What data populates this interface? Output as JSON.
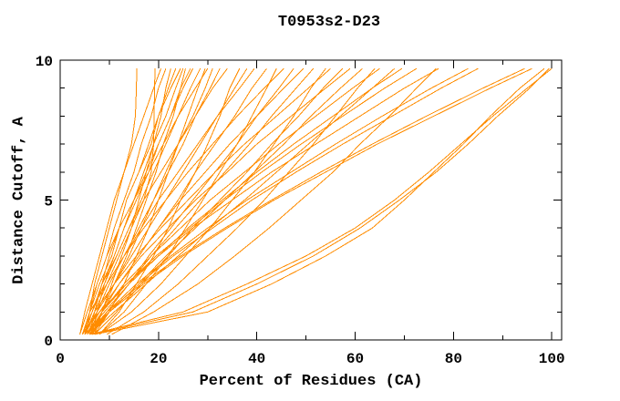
{
  "window": {
    "title": "T0953s2-D23"
  },
  "chart_data": {
    "type": "line",
    "title": "T0953s2-D23",
    "xlabel": "Percent of Residues (CA)",
    "ylabel": "Distance Cutoff, A",
    "xlim": [
      0,
      102
    ],
    "ylim": [
      0,
      10
    ],
    "x_major_ticks": [
      0,
      20,
      40,
      60,
      80,
      100
    ],
    "x_minor_ticks": [
      10,
      30,
      50,
      70,
      90
    ],
    "y_major_ticks": [
      0,
      5,
      10
    ],
    "y_minor_ticks": [
      1,
      2,
      3,
      4,
      6,
      7,
      8,
      9
    ],
    "grid": false,
    "legend": "none",
    "curve_color": "#FF8C00",
    "frame_color": "#000000",
    "background_color": "#FFFFFF",
    "y_levels": [
      0.2,
      1,
      2,
      3,
      4,
      5,
      6,
      7,
      8,
      9,
      9.7
    ],
    "curves": [
      [
        4,
        5,
        6.5,
        8,
        9.5,
        11,
        13,
        14.5,
        15.3,
        15.5,
        15.6
      ],
      [
        5,
        7,
        9.5,
        12,
        14.5,
        17,
        18.5,
        19,
        19.1,
        19.2,
        19.3
      ],
      [
        5,
        6,
        7,
        8.5,
        10,
        11.5,
        13,
        15,
        17,
        19,
        20.5
      ],
      [
        4.5,
        6,
        7.5,
        9.5,
        11,
        13,
        15,
        16.5,
        18.5,
        20,
        21.5
      ],
      [
        6.5,
        8.5,
        10.5,
        12.5,
        14.5,
        16,
        17.5,
        19,
        20.5,
        21.5,
        22.5
      ],
      [
        4.5,
        6,
        8,
        10.5,
        12,
        13.5,
        16,
        18.5,
        20,
        22,
        23.5
      ],
      [
        6,
        7,
        8.5,
        10,
        12,
        13.5,
        16,
        18,
        20,
        22.5,
        24.5
      ],
      [
        5,
        6.5,
        8.5,
        11,
        13,
        15,
        17,
        19,
        21.5,
        23.5,
        25
      ],
      [
        6,
        8.5,
        11,
        13.5,
        15.5,
        17.5,
        19.5,
        21,
        23,
        24.5,
        25.5
      ],
      [
        4.5,
        6.5,
        8.5,
        11,
        13,
        15.5,
        18,
        20,
        22.5,
        24.5,
        26.5
      ],
      [
        6.5,
        7.5,
        9,
        11,
        13,
        15,
        17.5,
        20,
        22.5,
        25,
        27
      ],
      [
        4.5,
        6.5,
        9,
        11.5,
        14,
        16.5,
        19,
        21.5,
        24,
        26.5,
        28.5
      ],
      [
        7,
        10,
        13,
        15.5,
        18,
        20,
        22,
        24,
        26,
        28,
        29.5
      ],
      [
        4,
        5.5,
        7.5,
        9.5,
        12,
        15,
        18,
        21,
        24,
        27.5,
        30
      ],
      [
        6.5,
        8.5,
        11,
        14,
        16.5,
        19,
        21.5,
        24,
        27,
        29.5,
        31
      ],
      [
        5,
        7.5,
        10,
        13,
        16,
        19,
        22,
        25,
        27.5,
        30.5,
        32.5
      ],
      [
        5,
        6.5,
        8.5,
        11.5,
        14,
        17,
        20.5,
        24,
        27.5,
        31,
        34
      ],
      [
        8,
        12,
        15.5,
        19,
        22,
        24.5,
        27.5,
        30,
        32.5,
        34.5,
        36.5
      ],
      [
        4.5,
        7.5,
        11,
        14.5,
        18,
        21.5,
        25,
        28.5,
        32,
        35.5,
        38
      ],
      [
        5.5,
        7.5,
        10,
        13,
        16.5,
        20,
        24,
        28,
        32,
        36.5,
        39.5
      ],
      [
        5.5,
        8.5,
        12,
        16,
        20,
        24,
        27.5,
        31.5,
        35.5,
        39,
        42
      ],
      [
        8,
        13,
        17.5,
        22,
        25.5,
        29,
        32.5,
        36,
        39,
        42,
        44
      ],
      [
        4.5,
        6,
        9.5,
        13,
        17,
        21.5,
        26,
        31,
        36,
        41.5,
        45.5
      ],
      [
        6,
        9.5,
        14,
        18,
        22.5,
        27,
        31.5,
        36,
        40,
        44.5,
        47.5
      ],
      [
        7,
        8.5,
        12,
        16,
        20,
        24.5,
        29.5,
        34.5,
        40,
        45.5,
        49.5
      ],
      [
        5,
        9,
        14,
        18.5,
        23.5,
        28.5,
        33.5,
        38.5,
        43,
        48,
        51.5
      ],
      [
        8,
        14.5,
        20.5,
        25.5,
        30.5,
        35,
        39.5,
        43.5,
        47.5,
        51,
        54
      ],
      [
        5,
        7,
        11,
        15.5,
        20.5,
        26,
        31.5,
        37.5,
        44,
        50.5,
        55
      ],
      [
        7,
        11.5,
        16.5,
        22,
        27,
        32.5,
        38,
        43,
        48.5,
        53.5,
        57.5
      ],
      [
        5.5,
        8,
        12,
        16.5,
        22,
        27.5,
        34,
        40,
        47,
        54,
        59
      ],
      [
        5,
        10,
        16,
        21.5,
        27.5,
        33.5,
        39.5,
        45.5,
        51,
        57,
        61.5
      ],
      [
        9.5,
        17,
        24,
        30,
        36,
        41.5,
        46.5,
        51.5,
        56,
        60.5,
        64
      ],
      [
        6,
        8.5,
        13,
        18.5,
        24.5,
        30.5,
        37.5,
        44.5,
        52,
        59.5,
        65
      ],
      [
        6,
        11,
        17.5,
        24,
        30.5,
        37.5,
        44,
        50.5,
        57,
        63.5,
        68
      ],
      [
        6.5,
        9.5,
        14,
        20,
        26,
        33,
        40,
        47.5,
        55.5,
        63.5,
        69.5
      ],
      [
        5.5,
        8.5,
        13.5,
        19.5,
        26.5,
        33.5,
        41,
        49,
        57.5,
        66,
        72.5
      ],
      [
        10.5,
        19,
        28,
        35.5,
        42.5,
        49,
        55.5,
        61,
        67,
        72.5,
        76.5
      ],
      [
        4.5,
        8,
        13.5,
        20,
        27,
        35,
        43,
        52,
        61,
        70,
        77
      ],
      [
        6,
        9.5,
        15.5,
        22.5,
        30,
        38,
        47,
        56,
        65.5,
        75.5,
        83
      ],
      [
        6.5,
        10,
        16,
        23,
        31,
        39,
        48,
        57.5,
        67.5,
        77.5,
        85
      ],
      [
        5.5,
        9.5,
        16.5,
        24.5,
        33.5,
        43,
        53,
        63.5,
        74.5,
        86,
        94.5
      ],
      [
        6,
        10,
        17,
        25,
        34,
        43.5,
        54,
        64.5,
        76,
        87.5,
        96
      ],
      [
        7,
        30,
        43,
        54,
        63.5,
        70,
        76,
        82,
        87.5,
        93.5,
        98.5
      ],
      [
        6,
        25,
        38,
        50,
        60,
        68,
        75,
        81.5,
        88,
        95,
        100
      ],
      [
        6.5,
        27,
        40,
        51.5,
        61,
        69,
        76.5,
        83,
        89,
        95.5,
        99.5
      ]
    ]
  }
}
